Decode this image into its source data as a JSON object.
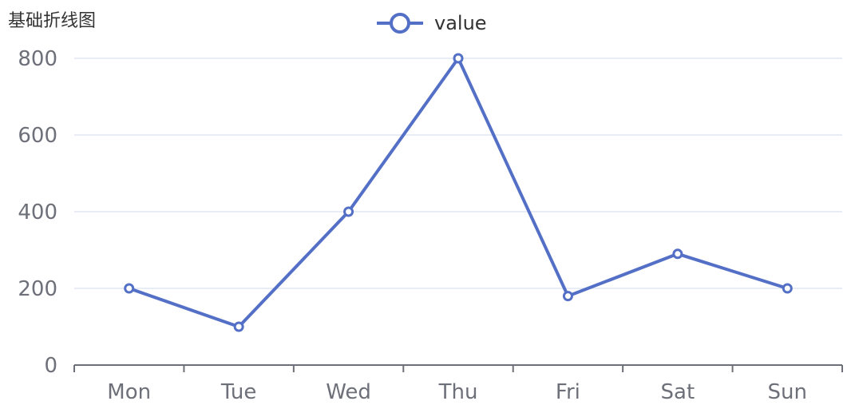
{
  "chart_data": {
    "type": "line",
    "title": "基础折线图",
    "categories": [
      "Mon",
      "Tue",
      "Wed",
      "Thu",
      "Fri",
      "Sat",
      "Sun"
    ],
    "series": [
      {
        "name": "value",
        "values": [
          200,
          100,
          400,
          800,
          180,
          290,
          200
        ]
      }
    ],
    "yticks": [
      0,
      200,
      400,
      600,
      800
    ],
    "ylim": [
      0,
      800
    ],
    "grid": true,
    "legend": "top-center",
    "colors": {
      "line": "#5470c6",
      "grid": "#e0e6f1",
      "axis": "#6e7079",
      "text": "#6e7079",
      "title": "#333333"
    }
  }
}
